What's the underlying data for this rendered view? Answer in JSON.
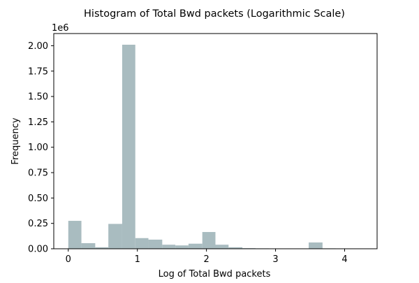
{
  "chart_data": {
    "type": "bar",
    "title": "Histogram of Total Bwd packets (Logarithmic Scale)",
    "xlabel": "Log of Total Bwd packets",
    "ylabel": "Frequency",
    "y_multiplier_label": "1e6",
    "xlim": [
      -0.21,
      4.47
    ],
    "ylim": [
      0,
      2.12
    ],
    "x_ticks": [
      0,
      1,
      2,
      3,
      4
    ],
    "x_tick_labels": [
      "0",
      "1",
      "2",
      "3",
      "4"
    ],
    "y_ticks": [
      0,
      0.25,
      0.5,
      0.75,
      1.0,
      1.25,
      1.5,
      1.75,
      2.0
    ],
    "y_tick_labels": [
      "0.00",
      "0.25",
      "0.50",
      "0.75",
      "1.00",
      "1.25",
      "1.50",
      "1.75",
      "2.00"
    ],
    "bar_color": "#a9bcc0",
    "bins": [
      {
        "x0": 0.0,
        "x1": 0.19,
        "value": 0.275
      },
      {
        "x0": 0.19,
        "x1": 0.39,
        "value": 0.055
      },
      {
        "x0": 0.39,
        "x1": 0.58,
        "value": 0.015
      },
      {
        "x0": 0.58,
        "x1": 0.78,
        "value": 0.245
      },
      {
        "x0": 0.78,
        "x1": 0.97,
        "value": 2.01
      },
      {
        "x0": 0.97,
        "x1": 1.16,
        "value": 0.105
      },
      {
        "x0": 1.16,
        "x1": 1.36,
        "value": 0.09
      },
      {
        "x0": 1.36,
        "x1": 1.55,
        "value": 0.04
      },
      {
        "x0": 1.55,
        "x1": 1.74,
        "value": 0.033
      },
      {
        "x0": 1.74,
        "x1": 1.94,
        "value": 0.05
      },
      {
        "x0": 1.94,
        "x1": 2.13,
        "value": 0.165
      },
      {
        "x0": 2.13,
        "x1": 2.32,
        "value": 0.04
      },
      {
        "x0": 2.32,
        "x1": 2.52,
        "value": 0.015
      },
      {
        "x0": 2.52,
        "x1": 2.71,
        "value": 0.006
      },
      {
        "x0": 2.71,
        "x1": 2.9,
        "value": 0.004
      },
      {
        "x0": 2.9,
        "x1": 3.1,
        "value": 0.002
      },
      {
        "x0": 3.1,
        "x1": 3.29,
        "value": 0.001
      },
      {
        "x0": 3.29,
        "x1": 3.48,
        "value": 0.001
      },
      {
        "x0": 3.48,
        "x1": 3.68,
        "value": 0.062
      },
      {
        "x0": 3.68,
        "x1": 3.87,
        "value": 0.004
      },
      {
        "x0": 3.87,
        "x1": 4.06,
        "value": 0.001
      },
      {
        "x0": 4.06,
        "x1": 4.26,
        "value": 0.0005
      }
    ]
  }
}
